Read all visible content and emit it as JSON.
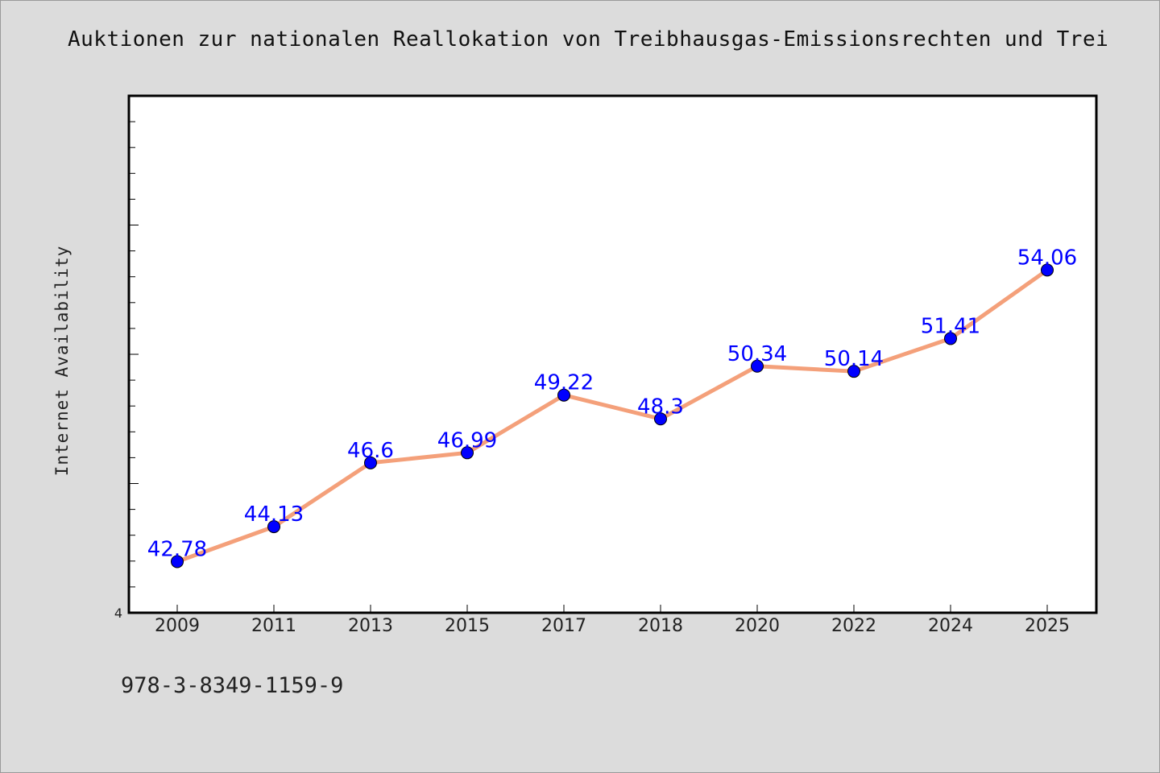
{
  "chart_data": {
    "type": "line",
    "title": "Auktionen zur nationalen Reallokation von Treibhausgas-Emissionsrechten und Trei",
    "xlabel": "",
    "ylabel": "Internet Availability",
    "categories": [
      "2009",
      "2011",
      "2013",
      "2015",
      "2017",
      "2018",
      "2020",
      "2022",
      "2024",
      "2025"
    ],
    "series": [
      {
        "values": [
          42.78,
          44.13,
          46.6,
          46.99,
          49.22,
          48.3,
          50.34,
          50.14,
          51.41,
          54.06
        ],
        "data_labels": [
          "42.78",
          "44.13",
          "46.6",
          "46.99",
          "49.22",
          "48.3",
          "50.34",
          "50.14",
          "51.41",
          "54.06"
        ]
      }
    ],
    "y_min_label": "4",
    "ylim": [
      40.8,
      60.8
    ],
    "grid": false,
    "colors": {
      "line": "#f4a07a",
      "marker": "#0000ff",
      "data_label": "#0000ff",
      "background": "#dcdcdc",
      "plot_bg": "#ffffff"
    }
  },
  "footer_text": "978-3-8349-1159-9"
}
